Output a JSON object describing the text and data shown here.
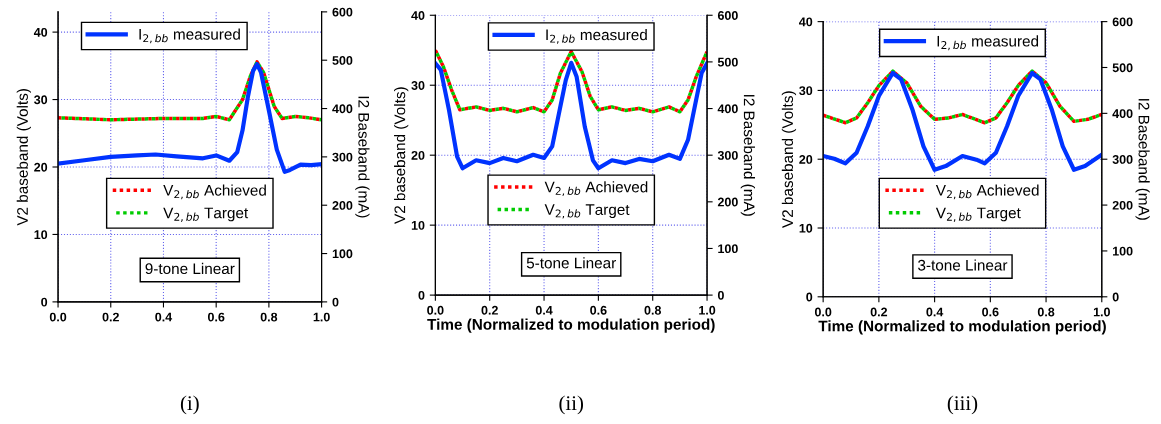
{
  "chart_data": [
    {
      "type": "line",
      "ylabel": "V2 baseband (Volts)",
      "y2label": "I2 Baseband (mA)",
      "ylim": [
        0,
        43
      ],
      "yticks": [
        0,
        10,
        20,
        30,
        40
      ],
      "y2lim": [
        0,
        600
      ],
      "y2ticks": [
        0,
        100,
        200,
        300,
        400,
        500,
        600
      ],
      "xlim": [
        0,
        1
      ],
      "xticks": [
        {
          "value": 0,
          "label": "0.0"
        },
        {
          "value": 0.2,
          "label": "0.2"
        },
        {
          "value": 0.4,
          "label": "0.4"
        },
        {
          "value": 0.6,
          "label": "0.6"
        },
        {
          "value": 0.8,
          "label": "0.8"
        },
        {
          "value": 1,
          "label": "1.0"
        }
      ],
      "grid": true,
      "legend": "top left",
      "annotations": [
        "9-tone Linear",
        "(i)"
      ],
      "series": [
        {
          "name": "V$_{2,bb}$ Achieved",
          "color": "#ff0000",
          "line_style": "dotted",
          "x": [
            0,
            0.2,
            0.4,
            0.55,
            0.6,
            0.65,
            0.7,
            0.73,
            0.755,
            0.78,
            0.82,
            0.85,
            0.9,
            0.95,
            1.0
          ],
          "values": [
            27.3,
            27.0,
            27.2,
            27.2,
            27.5,
            27.0,
            30,
            33.5,
            35.6,
            34,
            29,
            27.2,
            27.5,
            27.3,
            27.0
          ]
        },
        {
          "name": "V$_{2,bb}$ Target",
          "color": "#00cc00",
          "line_style": "dotted",
          "x": [
            0,
            0.2,
            0.4,
            0.55,
            0.6,
            0.65,
            0.7,
            0.73,
            0.755,
            0.78,
            0.82,
            0.85,
            0.9,
            0.95,
            1.0
          ],
          "values": [
            27.3,
            27.0,
            27.2,
            27.2,
            27.5,
            27.0,
            30,
            33.5,
            35.6,
            34,
            29,
            27.2,
            27.5,
            27.3,
            27.0
          ]
        },
        {
          "name": "I$_{2,bb}$ measured",
          "color": "#0033ff",
          "line_style": "solid",
          "axis": "y2",
          "x": [
            0,
            0.1,
            0.2,
            0.3,
            0.37,
            0.45,
            0.55,
            0.6,
            0.65,
            0.68,
            0.7,
            0.72,
            0.74,
            0.755,
            0.77,
            0.8,
            0.83,
            0.86,
            0.88,
            0.92,
            0.96,
            1.0
          ],
          "values": [
            286,
            293,
            300,
            303,
            305,
            301,
            297,
            303,
            292,
            310,
            355,
            423,
            478,
            492,
            475,
            396,
            315,
            269,
            273,
            284,
            283,
            285
          ]
        }
      ]
    },
    {
      "type": "line",
      "xlabel": "Time (Normalized to modulation period)",
      "ylabel": "V2 baseband (Volts)",
      "y2label": "I2 Baseband (mA)",
      "ylim": [
        0,
        40
      ],
      "yticks": [
        0,
        10,
        20,
        30,
        40
      ],
      "y2lim": [
        0,
        600
      ],
      "y2ticks": [
        0,
        100,
        200,
        300,
        400,
        500,
        600
      ],
      "xlim": [
        0,
        1
      ],
      "xticks": [
        {
          "value": 0,
          "label": "0.0"
        },
        {
          "value": 0.2,
          "label": "0.2"
        },
        {
          "value": 0.4,
          "label": "0.4"
        },
        {
          "value": 0.6,
          "label": "0.6"
        },
        {
          "value": 0.8,
          "label": "0.8"
        },
        {
          "value": 1,
          "label": "1.0"
        }
      ],
      "grid": true,
      "legend": "top",
      "annotations": [
        "5-tone Linear",
        "(ii)"
      ],
      "series": [
        {
          "name": "V$_{2,bb}$ Achieved",
          "color": "#ff0000",
          "line_style": "dotted",
          "x": [
            0,
            0.03,
            0.06,
            0.09,
            0.15,
            0.2,
            0.25,
            0.3,
            0.36,
            0.4,
            0.43,
            0.46,
            0.5,
            0.54,
            0.57,
            0.6,
            0.65,
            0.7,
            0.75,
            0.8,
            0.86,
            0.9,
            0.93,
            0.96,
            1.0
          ],
          "values": [
            35.0,
            32.6,
            29.3,
            26.5,
            26.9,
            26.4,
            26.7,
            26.2,
            26.8,
            26.2,
            27.9,
            31.7,
            34.8,
            31.9,
            28.4,
            26.5,
            26.9,
            26.4,
            26.7,
            26.2,
            26.9,
            26.2,
            27.9,
            31.2,
            34.8
          ]
        },
        {
          "name": "V$_{2,bb}$ Target",
          "color": "#00cc00",
          "line_style": "dotted",
          "x": [
            0,
            0.03,
            0.06,
            0.09,
            0.15,
            0.2,
            0.25,
            0.3,
            0.36,
            0.4,
            0.43,
            0.46,
            0.5,
            0.54,
            0.57,
            0.6,
            0.65,
            0.7,
            0.75,
            0.8,
            0.86,
            0.9,
            0.93,
            0.96,
            1.0
          ],
          "values": [
            35.0,
            32.6,
            29.3,
            26.5,
            26.9,
            26.4,
            26.7,
            26.2,
            26.8,
            26.2,
            27.9,
            31.7,
            34.8,
            31.9,
            28.4,
            26.5,
            26.9,
            26.4,
            26.7,
            26.2,
            26.9,
            26.2,
            27.9,
            31.2,
            34.8
          ]
        },
        {
          "name": "I$_{2,bb}$ measured",
          "color": "#0033ff",
          "line_style": "solid",
          "axis": "y2",
          "x": [
            0,
            0.02,
            0.05,
            0.08,
            0.1,
            0.15,
            0.2,
            0.25,
            0.3,
            0.36,
            0.4,
            0.43,
            0.46,
            0.48,
            0.5,
            0.52,
            0.55,
            0.58,
            0.6,
            0.65,
            0.7,
            0.75,
            0.8,
            0.86,
            0.9,
            0.93,
            0.96,
            0.98,
            1.0
          ],
          "values": [
            497,
            483,
            397,
            297,
            272,
            289,
            283,
            294,
            287,
            301,
            294,
            319,
            404,
            461,
            498,
            468,
            361,
            289,
            272,
            289,
            283,
            292,
            287,
            301,
            292,
            333,
            419,
            476,
            497
          ]
        }
      ]
    },
    {
      "type": "line",
      "xlabel": "Time (Normalized to modulation period)",
      "ylabel": "V2 baseband (Volts)",
      "y2label": "I2 Baseband (mA)",
      "ylim": [
        0,
        40
      ],
      "yticks": [
        0,
        10,
        20,
        30,
        40
      ],
      "y2lim": [
        0,
        600
      ],
      "y2ticks": [
        0,
        100,
        200,
        300,
        400,
        500,
        600
      ],
      "xlim": [
        0,
        1
      ],
      "xticks": [
        {
          "value": 0,
          "label": "0.0"
        },
        {
          "value": 0.2,
          "label": "0.2"
        },
        {
          "value": 0.4,
          "label": "0.4"
        },
        {
          "value": 0.6,
          "label": "0.6"
        },
        {
          "value": 0.8,
          "label": "0.8"
        },
        {
          "value": 1,
          "label": "1.0"
        }
      ],
      "grid": true,
      "legend": "top",
      "annotations": [
        "3-tone Linear",
        "(iii)"
      ],
      "series": [
        {
          "name": "V$_{2,bb}$ Achieved",
          "color": "#ff0000",
          "line_style": "dotted",
          "x": [
            0,
            0.08,
            0.12,
            0.16,
            0.2,
            0.25,
            0.3,
            0.35,
            0.4,
            0.45,
            0.5,
            0.58,
            0.62,
            0.66,
            0.7,
            0.75,
            0.8,
            0.85,
            0.9,
            0.95,
            1.0
          ],
          "values": [
            26.4,
            25.3,
            26.0,
            28.2,
            30.7,
            32.8,
            31.1,
            27.7,
            25.8,
            26.0,
            26.5,
            25.3,
            26.0,
            28.2,
            30.7,
            32.8,
            31.1,
            27.7,
            25.5,
            25.8,
            26.5
          ]
        },
        {
          "name": "V$_{2,bb}$ Target",
          "color": "#00cc00",
          "line_style": "dotted",
          "x": [
            0,
            0.08,
            0.12,
            0.16,
            0.2,
            0.25,
            0.3,
            0.35,
            0.4,
            0.45,
            0.5,
            0.58,
            0.62,
            0.66,
            0.7,
            0.75,
            0.8,
            0.85,
            0.9,
            0.95,
            1.0
          ],
          "values": [
            26.4,
            25.3,
            26.0,
            28.2,
            30.7,
            32.8,
            31.1,
            27.7,
            25.8,
            26.0,
            26.5,
            25.3,
            26.0,
            28.2,
            30.7,
            32.8,
            31.1,
            27.7,
            25.5,
            25.8,
            26.5
          ]
        },
        {
          "name": "I$_{2,bb}$ measured",
          "color": "#0033ff",
          "line_style": "solid",
          "axis": "y2",
          "x": [
            0,
            0.04,
            0.08,
            0.12,
            0.16,
            0.2,
            0.25,
            0.28,
            0.32,
            0.36,
            0.4,
            0.44,
            0.5,
            0.55,
            0.58,
            0.62,
            0.66,
            0.7,
            0.75,
            0.78,
            0.82,
            0.86,
            0.9,
            0.94,
            1.0
          ],
          "values": [
            307,
            301,
            291,
            314,
            372,
            438,
            488,
            474,
            409,
            328,
            277,
            285,
            307,
            299,
            291,
            314,
            372,
            438,
            488,
            474,
            409,
            328,
            277,
            285,
            310
          ]
        }
      ]
    }
  ]
}
